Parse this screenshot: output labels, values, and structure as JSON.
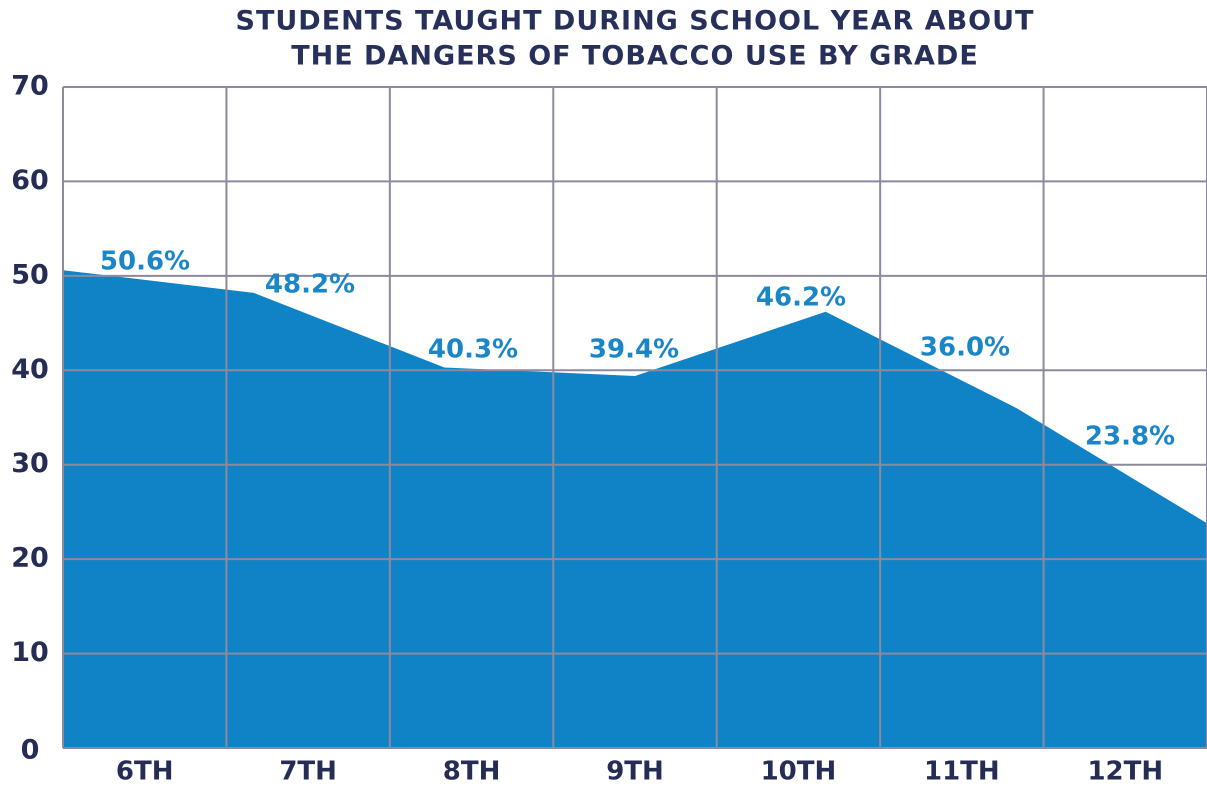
{
  "chart_data": {
    "type": "area",
    "title": [
      "STUDENTS TAUGHT DURING SCHOOL YEAR ABOUT",
      "THE DANGERS OF TOBACCO USE BY GRADE"
    ],
    "categories": [
      "6TH",
      "7TH",
      "8TH",
      "9TH",
      "10TH",
      "11TH",
      "12TH"
    ],
    "values": [
      50.6,
      48.2,
      40.3,
      39.4,
      46.2,
      36.0,
      23.8
    ],
    "value_labels": [
      "50.6%",
      "48.2%",
      "40.3%",
      "39.4%",
      "46.2%",
      "36.0%",
      "23.8%"
    ],
    "color": "#0f83c6",
    "ylim": [
      0,
      70
    ],
    "yticks": [
      0,
      10,
      20,
      30,
      40,
      50,
      60,
      70
    ],
    "grid": true
  }
}
